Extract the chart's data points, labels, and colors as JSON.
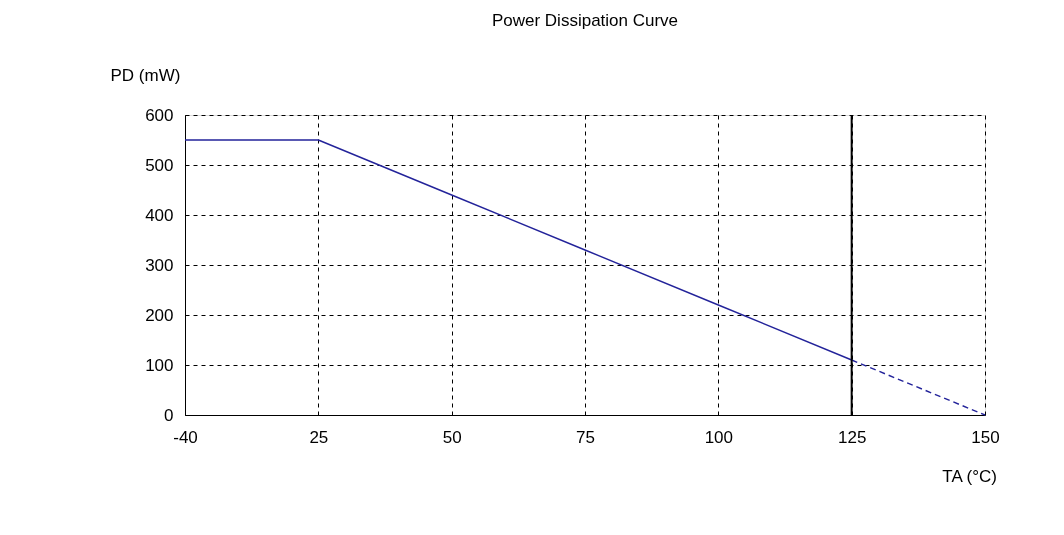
{
  "chart_data": {
    "type": "line",
    "title": "Power Dissipation Curve",
    "xlabel": "TA (°C)",
    "ylabel": "PD (mW)",
    "categories": [
      "-40",
      "25",
      "50",
      "75",
      "100",
      "125",
      "150"
    ],
    "series": [
      {
        "color": "#23239a",
        "values": [
          550,
          550,
          440,
          330,
          220,
          110,
          null
        ],
        "line_style": "solid"
      },
      {
        "color": "#23239a",
        "values": [
          null,
          null,
          null,
          null,
          null,
          110,
          0
        ],
        "line_style": "dashed"
      }
    ],
    "ylim": [
      0,
      600
    ],
    "yticks": [
      0,
      100,
      200,
      300,
      400,
      500,
      600
    ],
    "grid": true,
    "ref_lines": [
      {
        "axis": "x",
        "value": "125",
        "color": "#000000",
        "line_style": "solid"
      }
    ]
  }
}
